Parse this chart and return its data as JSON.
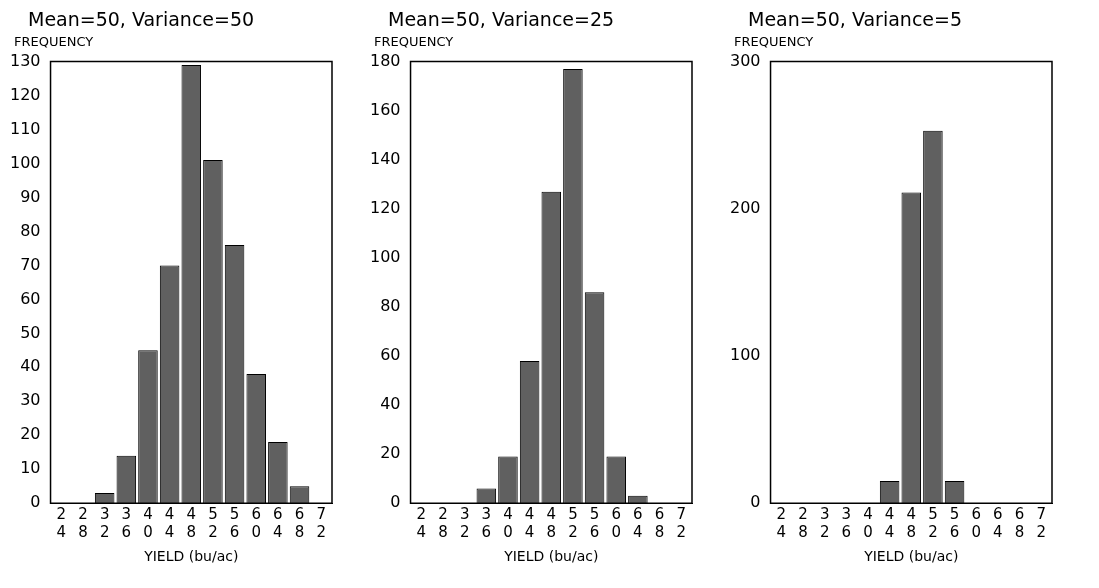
{
  "chart_data": [
    {
      "type": "bar",
      "title": "Mean=50, Variance=50",
      "ylabel": "FREQUENCY",
      "xlabel": "YIELD (bu/ac)",
      "categories": [
        "24",
        "28",
        "32",
        "36",
        "40",
        "44",
        "48",
        "52",
        "56",
        "60",
        "64",
        "68",
        "72"
      ],
      "values": [
        0,
        0,
        3,
        14,
        45,
        70,
        129,
        101,
        76,
        38,
        18,
        5,
        0
      ],
      "color": "#606060",
      "ylim": [
        0,
        130
      ],
      "yticks": [
        0,
        10,
        20,
        30,
        40,
        50,
        60,
        70,
        80,
        90,
        100,
        110,
        120,
        130
      ],
      "grid": false,
      "legend": false
    },
    {
      "type": "bar",
      "title": "Mean=50, Variance=25",
      "ylabel": "FREQUENCY",
      "xlabel": "YIELD (bu/ac)",
      "categories": [
        "24",
        "28",
        "32",
        "36",
        "40",
        "44",
        "48",
        "52",
        "56",
        "60",
        "64",
        "68",
        "72"
      ],
      "values": [
        0,
        0,
        0,
        6,
        19,
        58,
        127,
        177,
        86,
        19,
        3,
        0,
        0
      ],
      "color": "#606060",
      "ylim": [
        0,
        180
      ],
      "yticks": [
        0,
        20,
        40,
        60,
        80,
        100,
        120,
        140,
        160,
        180
      ],
      "grid": false,
      "legend": false
    },
    {
      "type": "bar",
      "title": "Mean=50, Variance=5",
      "ylabel": "FREQUENCY",
      "xlabel": "YIELD (bu/ac)",
      "categories": [
        "24",
        "28",
        "32",
        "36",
        "40",
        "44",
        "48",
        "52",
        "56",
        "60",
        "64",
        "68",
        "72"
      ],
      "values": [
        0,
        0,
        0,
        0,
        0,
        15,
        211,
        253,
        15,
        0,
        0,
        0,
        0
      ],
      "color": "#606060",
      "ylim": [
        0,
        300
      ],
      "yticks": [
        0,
        100,
        200,
        300
      ],
      "grid": false,
      "legend": false
    }
  ]
}
